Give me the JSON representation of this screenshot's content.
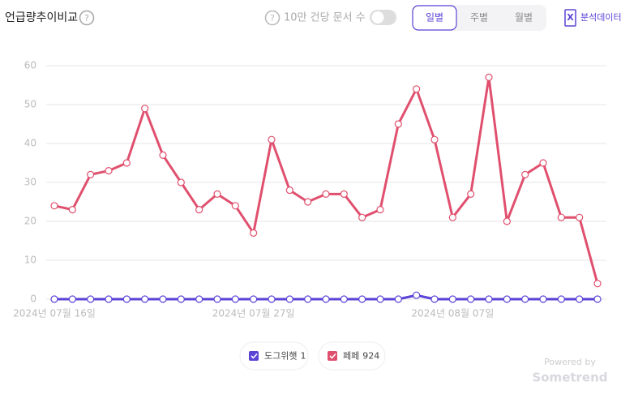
{
  "header": {
    "title": "언급량추이비교",
    "toggle_label": "10만 건당 문서 수",
    "tabs": [
      "일별",
      "주별",
      "월별"
    ],
    "active_tab": 0,
    "export_label": "분석데이터"
  },
  "chart_data": {
    "type": "line",
    "categories": [
      "2024년 07월 16일",
      null,
      null,
      null,
      null,
      null,
      null,
      null,
      null,
      null,
      null,
      "2024년 07월 27일",
      null,
      null,
      null,
      null,
      null,
      null,
      null,
      null,
      null,
      null,
      "2024년 08월 07일",
      null,
      null,
      null,
      null,
      null,
      null,
      null,
      null
    ],
    "series": [
      {
        "name": "도그위햇",
        "total": 1,
        "color": "#5b43d6",
        "values": [
          0,
          0,
          0,
          0,
          0,
          0,
          0,
          0,
          0,
          0,
          0,
          0,
          0,
          0,
          0,
          0,
          0,
          0,
          0,
          0,
          1,
          0,
          0,
          0,
          0,
          0,
          0,
          0,
          0,
          0,
          0
        ]
      },
      {
        "name": "페페",
        "total": 924,
        "color": "#e0506e",
        "values": [
          24,
          23,
          32,
          33,
          35,
          49,
          37,
          30,
          23,
          27,
          24,
          17,
          41,
          28,
          25,
          27,
          27,
          21,
          23,
          45,
          54,
          41,
          21,
          27,
          57,
          20,
          32,
          35,
          21,
          21,
          4
        ]
      }
    ],
    "ylim": [
      0,
      60
    ],
    "yticks": [
      0,
      10,
      20,
      30,
      40,
      50,
      60
    ],
    "grid": true
  },
  "footer": {
    "powered": "Powered by",
    "brand": "Sometrend"
  }
}
